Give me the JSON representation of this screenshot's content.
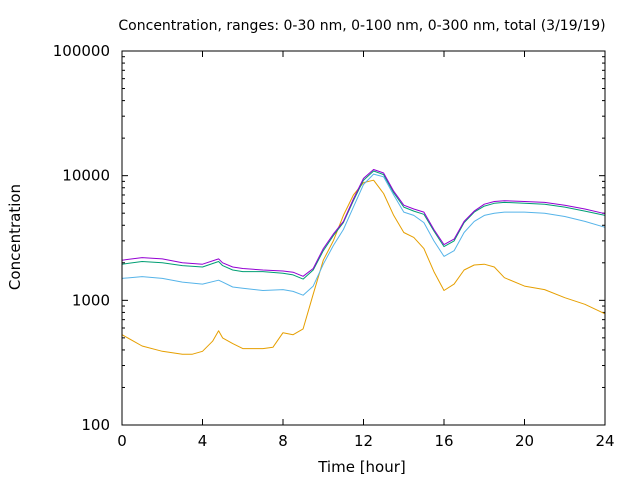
{
  "chart_data": {
    "type": "line",
    "title": "Concentration, ranges: 0-30 nm, 0-100 nm, 0-300 nm, total (3/19/19)",
    "xlabel": "Time [hour]",
    "ylabel": "Concentration",
    "xlim": [
      0,
      24
    ],
    "ylim": [
      100,
      100000
    ],
    "yscale": "log",
    "grid": false,
    "legend": "none",
    "xticks": [
      0,
      4,
      8,
      12,
      16,
      20,
      24
    ],
    "xtick_labels": [
      "0",
      "4",
      "8",
      "12",
      "16",
      "20",
      "24"
    ],
    "yticks": [
      100,
      1000,
      10000,
      100000
    ],
    "ytick_labels": [
      "100",
      "1000",
      "10000",
      "100000"
    ],
    "series": [
      {
        "color": "#e69f00",
        "x": [
          0,
          1,
          2,
          3,
          3.5,
          4,
          4.5,
          4.8,
          5,
          5.5,
          6,
          7,
          7.5,
          8,
          8.5,
          9,
          9.5,
          10,
          10.5,
          11,
          11.5,
          12,
          12.5,
          13,
          13.5,
          14,
          14.5,
          15,
          15.5,
          16,
          16.5,
          17,
          17.5,
          18,
          18.5,
          19,
          20,
          21,
          22,
          23,
          24
        ],
        "y": [
          530,
          430,
          390,
          370,
          370,
          390,
          470,
          570,
          500,
          450,
          410,
          410,
          420,
          550,
          530,
          590,
          1120,
          2100,
          3000,
          4800,
          7000,
          8800,
          9200,
          7200,
          4800,
          3500,
          3200,
          2600,
          1700,
          1200,
          1350,
          1750,
          1920,
          1950,
          1850,
          1520,
          1300,
          1220,
          1050,
          930,
          780
        ]
      },
      {
        "color": "#56b4e9",
        "x": [
          0,
          1,
          2,
          3,
          4,
          4.8,
          5,
          5.5,
          6,
          7,
          8,
          8.5,
          9,
          9.5,
          10,
          10.5,
          11,
          11.5,
          12,
          12.5,
          13,
          13.5,
          14,
          14.5,
          15,
          15.5,
          16,
          16.5,
          17,
          17.5,
          18,
          18.5,
          19,
          20,
          21,
          22,
          23,
          24
        ],
        "y": [
          1500,
          1550,
          1500,
          1400,
          1350,
          1450,
          1400,
          1280,
          1250,
          1200,
          1220,
          1180,
          1100,
          1300,
          1950,
          2750,
          3700,
          5600,
          8500,
          10300,
          9800,
          7000,
          5100,
          4800,
          4200,
          3000,
          2250,
          2500,
          3500,
          4300,
          4800,
          5000,
          5100,
          5100,
          5000,
          4700,
          4300,
          3850
        ]
      },
      {
        "color": "#009e73",
        "x": [
          0,
          1,
          2,
          3,
          4,
          4.8,
          5,
          5.5,
          6,
          7,
          8,
          8.5,
          9,
          9.5,
          10,
          10.5,
          11,
          11.5,
          12,
          12.5,
          13,
          13.5,
          14,
          14.5,
          15,
          15.5,
          16,
          16.5,
          17,
          17.5,
          18,
          18.5,
          19,
          20,
          21,
          22,
          23,
          24
        ],
        "y": [
          1950,
          2050,
          2000,
          1900,
          1850,
          2050,
          1900,
          1750,
          1700,
          1700,
          1650,
          1600,
          1480,
          1750,
          2500,
          3300,
          4200,
          6300,
          9200,
          10900,
          10200,
          7300,
          5600,
          5200,
          4900,
          3600,
          2700,
          3000,
          4200,
          5100,
          5700,
          6000,
          6100,
          6000,
          5900,
          5600,
          5200,
          4800
        ]
      },
      {
        "color": "#9400d3",
        "x": [
          0,
          1,
          2,
          3,
          4,
          4.8,
          5,
          5.5,
          6,
          7,
          8,
          8.5,
          9,
          9.5,
          10,
          10.5,
          11,
          11.5,
          12,
          12.5,
          13,
          13.5,
          14,
          14.5,
          15,
          15.5,
          16,
          16.5,
          17,
          17.5,
          18,
          18.5,
          19,
          20,
          21,
          22,
          23,
          24
        ],
        "y": [
          2100,
          2200,
          2150,
          2000,
          1950,
          2150,
          2000,
          1850,
          1800,
          1750,
          1720,
          1680,
          1560,
          1800,
          2600,
          3400,
          4300,
          6500,
          9500,
          11200,
          10500,
          7500,
          5800,
          5400,
          5100,
          3700,
          2800,
          3100,
          4300,
          5200,
          5900,
          6200,
          6300,
          6200,
          6100,
          5800,
          5400,
          4950
        ]
      }
    ]
  }
}
